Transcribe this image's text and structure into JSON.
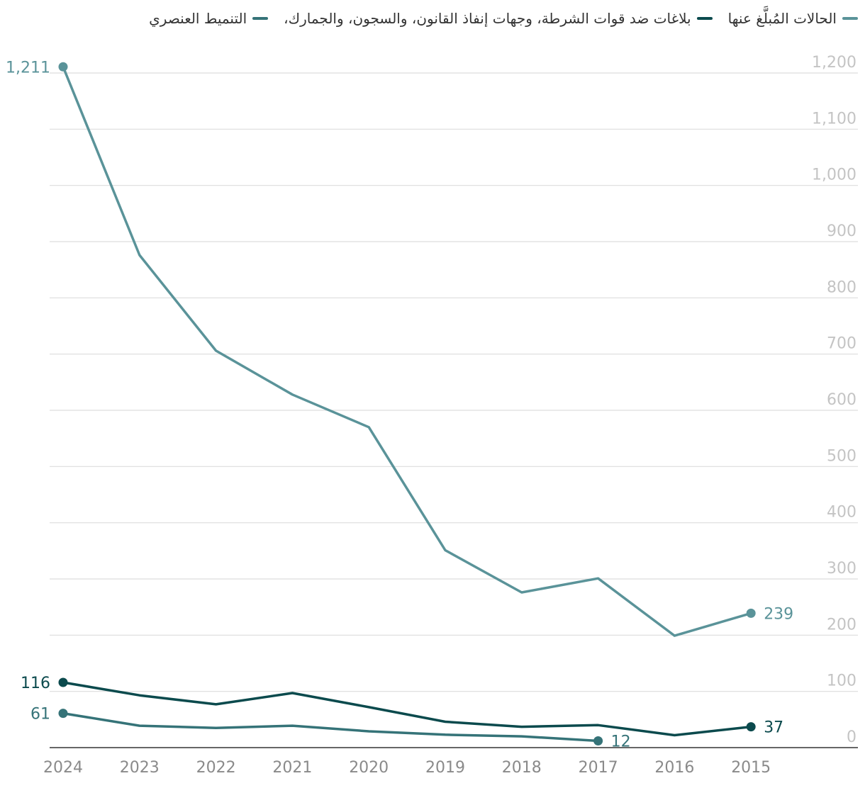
{
  "legend": {
    "items": [
      {
        "label": "الحالات المُبلَّغ عنها",
        "color": "#5a9399"
      },
      {
        "label": "بلاغات ضد قوات الشرطة، وجهات إنفاذ القانون، والسجون، والجمارك،",
        "color": "#0b4a4d"
      },
      {
        "label": "التنميط العنصري",
        "color": "#357378"
      }
    ]
  },
  "chart_data": {
    "type": "line",
    "x": [
      "2024",
      "2023",
      "2022",
      "2021",
      "2020",
      "2019",
      "2018",
      "2017",
      "2016",
      "2015"
    ],
    "ylim": [
      0,
      1200
    ],
    "yticks": [
      0,
      100,
      200,
      300,
      400,
      500,
      600,
      700,
      800,
      900,
      1000,
      1100,
      1200
    ],
    "ytick_labels": [
      "0",
      "100",
      "200",
      "300",
      "400",
      "500",
      "600",
      "700",
      "800",
      "900",
      "1,000",
      "1,100",
      "1,200"
    ],
    "grid": true,
    "y_axis_side": "right",
    "legend_position": "top",
    "series": [
      {
        "name": "الحالات المُبلَّغ عنها",
        "color": "#5a9399",
        "values": [
          1211,
          876,
          706,
          628,
          570,
          351,
          276,
          301,
          199,
          239
        ],
        "labels": [
          {
            "index": 0,
            "text": "1,211"
          },
          {
            "index": 9,
            "text": "239"
          }
        ]
      },
      {
        "name": "بلاغات ضد قوات الشرطة، وجهات إنفاذ القانون، والسجون، والجمارك،",
        "color": "#0b4a4d",
        "values": [
          116,
          93,
          77,
          97,
          72,
          46,
          37,
          40,
          22,
          37
        ],
        "labels": [
          {
            "index": 0,
            "text": "116"
          },
          {
            "index": 9,
            "text": "37"
          }
        ]
      },
      {
        "name": "التنميط العنصري",
        "color": "#357378",
        "values": [
          61,
          39,
          35,
          39,
          29,
          23,
          20,
          12,
          null,
          null
        ],
        "labels": [
          {
            "index": 0,
            "text": "61"
          },
          {
            "index": 7,
            "text": "12"
          }
        ]
      }
    ]
  }
}
